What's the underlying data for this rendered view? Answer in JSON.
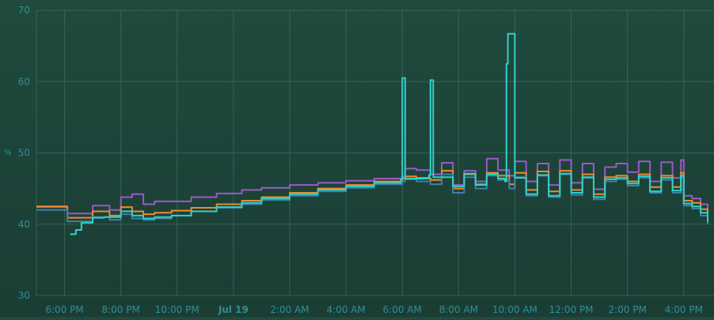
{
  "chart_data": {
    "type": "line",
    "ylabel": "%",
    "ylim": [
      30,
      70
    ],
    "y_ticks": [
      "30",
      "40",
      "50",
      "60",
      "70"
    ],
    "x_range_hours": [
      -7.0,
      16.85
    ],
    "x_ticks": [
      {
        "label": "6:00 PM",
        "value": -6
      },
      {
        "label": "8:00 PM",
        "value": -4
      },
      {
        "label": "10:00 PM",
        "value": -2
      },
      {
        "label": "Jul 19",
        "value": 0
      },
      {
        "label": "2:00 AM",
        "value": 2
      },
      {
        "label": "4:00 AM",
        "value": 4
      },
      {
        "label": "6:00 AM",
        "value": 6
      },
      {
        "label": "8:00 AM",
        "value": 8
      },
      {
        "label": "10:00 AM",
        "value": 10
      },
      {
        "label": "12:00 PM",
        "value": 12
      },
      {
        "label": "2:00 PM",
        "value": 14
      },
      {
        "label": "4:00 PM",
        "value": 16
      }
    ],
    "grid": true,
    "series": [
      {
        "color": "#9b59c8",
        "x": [
          -7.0,
          -5.9,
          -5.0,
          -4.4,
          -4.0,
          -3.6,
          -3.2,
          -2.8,
          -2.2,
          -1.5,
          -0.6,
          0.3,
          1.0,
          2.0,
          3.0,
          4.0,
          5.0,
          6.0,
          6.1,
          6.5,
          7.0,
          7.4,
          7.8,
          8.2,
          8.6,
          9.0,
          9.4,
          9.8,
          10.0,
          10.4,
          10.8,
          11.2,
          11.6,
          12.0,
          12.4,
          12.8,
          13.2,
          13.6,
          14.0,
          14.4,
          14.8,
          15.2,
          15.6,
          15.9,
          16.0,
          16.3,
          16.6,
          16.85
        ],
        "y": [
          42.4,
          41.5,
          42.6,
          42.0,
          43.8,
          44.2,
          42.8,
          43.2,
          43.2,
          43.8,
          44.3,
          44.8,
          45.1,
          45.5,
          45.8,
          46.1,
          46.4,
          46.7,
          47.8,
          47.6,
          47.0,
          48.6,
          45.5,
          47.5,
          46.0,
          49.2,
          47.6,
          46.8,
          48.8,
          46.0,
          48.5,
          45.5,
          49.0,
          45.8,
          48.5,
          44.9,
          48.0,
          48.5,
          47.3,
          48.8,
          46.0,
          48.7,
          46.5,
          49.0,
          44.0,
          43.6,
          42.8,
          41.5
        ]
      },
      {
        "color": "#f08a2c",
        "x": [
          -7.0,
          -5.9,
          -5.0,
          -4.4,
          -4.0,
          -3.6,
          -3.2,
          -2.8,
          -2.2,
          -1.5,
          -0.6,
          0.3,
          1.0,
          2.0,
          3.0,
          4.0,
          5.0,
          6.0,
          6.1,
          6.5,
          7.0,
          7.4,
          7.8,
          8.2,
          8.6,
          9.0,
          9.4,
          9.8,
          10.0,
          10.4,
          10.8,
          11.2,
          11.6,
          12.0,
          12.4,
          12.8,
          13.2,
          13.6,
          14.0,
          14.4,
          14.8,
          15.2,
          15.6,
          15.9,
          16.0,
          16.3,
          16.6,
          16.85
        ],
        "y": [
          42.5,
          40.9,
          41.8,
          41.2,
          42.4,
          41.8,
          41.4,
          41.6,
          41.9,
          42.3,
          42.8,
          43.3,
          43.8,
          44.4,
          45.0,
          45.5,
          46.0,
          46.4,
          46.7,
          46.5,
          46.2,
          47.5,
          45.0,
          47.0,
          45.6,
          47.2,
          46.8,
          45.6,
          47.2,
          44.8,
          47.4,
          44.6,
          47.5,
          44.8,
          47.0,
          44.2,
          46.6,
          46.8,
          46.0,
          47.0,
          45.2,
          46.8,
          45.2,
          47.2,
          43.3,
          43.0,
          42.1,
          40.9
        ]
      },
      {
        "color": "#3f7fa8",
        "x": [
          -7.0,
          -5.9,
          -5.0,
          -4.4,
          -4.0,
          -3.6,
          -3.2,
          -2.8,
          -2.2,
          -1.5,
          -0.6,
          0.3,
          1.0,
          2.0,
          3.0,
          4.0,
          5.0,
          6.0,
          6.1,
          6.5,
          7.0,
          7.4,
          7.8,
          8.2,
          8.6,
          9.0,
          9.4,
          9.8,
          10.0,
          10.4,
          10.8,
          11.2,
          11.6,
          12.0,
          12.4,
          12.8,
          13.2,
          13.6,
          14.0,
          14.4,
          14.8,
          15.2,
          15.6,
          15.9,
          16.0,
          16.3,
          16.6,
          16.85
        ],
        "y": [
          42.0,
          40.4,
          41.0,
          40.6,
          41.4,
          40.8,
          40.6,
          40.8,
          41.2,
          41.8,
          42.3,
          42.8,
          43.4,
          44.0,
          44.6,
          45.1,
          45.6,
          46.0,
          46.3,
          46.0,
          45.6,
          47.0,
          44.4,
          46.6,
          45.0,
          46.8,
          46.2,
          45.0,
          46.6,
          44.0,
          46.8,
          43.8,
          47.0,
          44.1,
          46.5,
          43.5,
          46.0,
          46.3,
          45.4,
          46.5,
          44.4,
          46.2,
          44.4,
          46.6,
          42.6,
          42.2,
          41.2,
          40.0
        ]
      },
      {
        "color": "#2fd1c9",
        "x": [
          -5.8,
          -5.6,
          -5.4,
          -5.0,
          -4.6,
          -4.0,
          -3.6,
          -3.2,
          -2.8,
          -2.2,
          -1.5,
          -0.6,
          0.3,
          1.0,
          2.0,
          3.0,
          4.0,
          5.0,
          5.95,
          6.0,
          6.05,
          6.1,
          6.95,
          7.0,
          7.05,
          7.1,
          7.8,
          8.2,
          8.6,
          9.0,
          9.4,
          9.65,
          9.7,
          9.75,
          9.8,
          10.0,
          10.4,
          10.8,
          11.2,
          11.6,
          12.0,
          12.4,
          12.8,
          13.2,
          13.6,
          14.0,
          14.4,
          14.8,
          15.2,
          15.6,
          15.9,
          16.0,
          16.3,
          16.6,
          16.85
        ],
        "y": [
          38.6,
          39.2,
          40.2,
          40.9,
          41.0,
          41.8,
          41.2,
          40.8,
          41.0,
          41.2,
          41.8,
          42.4,
          43.0,
          43.6,
          44.2,
          44.8,
          45.3,
          45.8,
          46.3,
          60.5,
          60.5,
          46.4,
          46.9,
          60.2,
          60.2,
          46.6,
          45.3,
          47.1,
          45.5,
          47.0,
          46.4,
          46.0,
          62.5,
          66.7,
          66.7,
          46.5,
          44.2,
          46.9,
          44.0,
          47.1,
          44.4,
          46.6,
          43.8,
          46.3,
          46.5,
          45.7,
          46.7,
          44.6,
          46.5,
          44.7,
          46.8,
          42.9,
          42.5,
          41.6,
          40.3
        ]
      }
    ]
  }
}
